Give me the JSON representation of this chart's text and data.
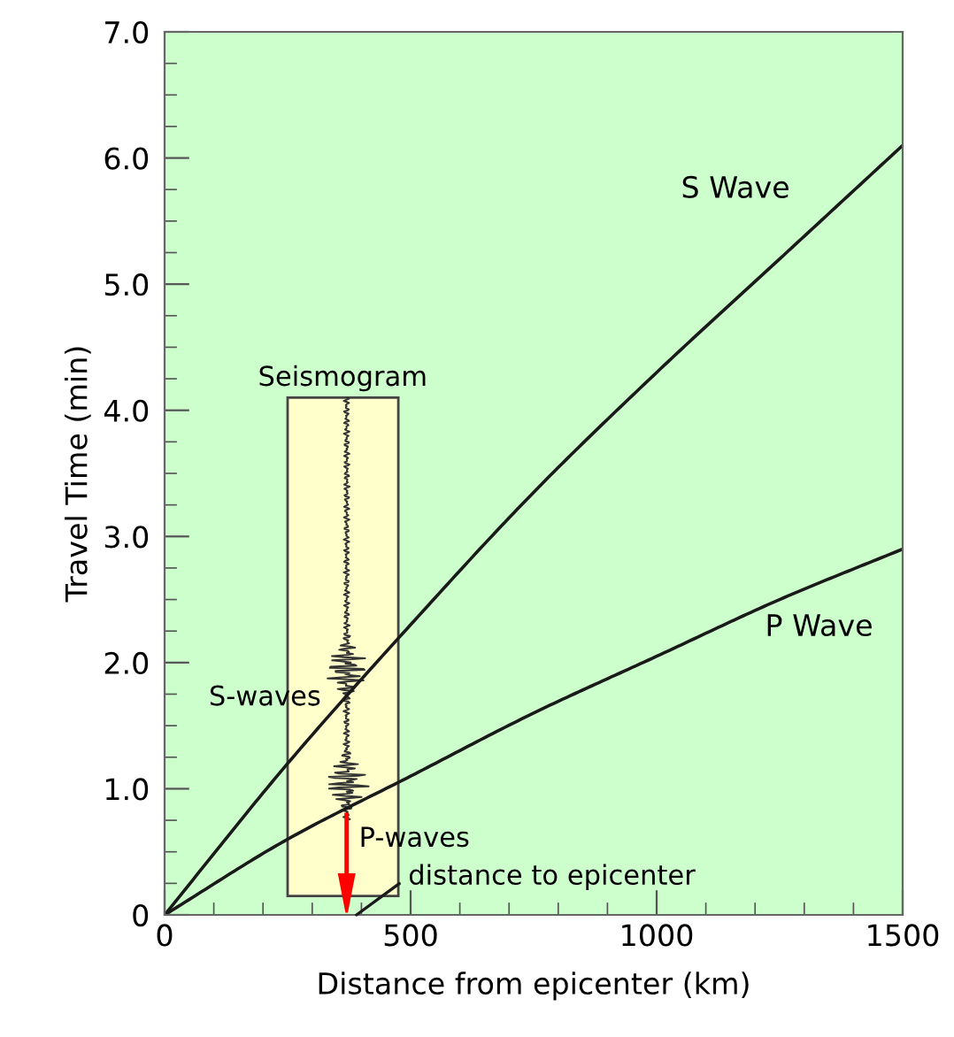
{
  "chart_data": {
    "type": "line",
    "xlabel": "Distance from epicenter (km)",
    "ylabel": "Travel Time (min)",
    "x": [
      0,
      250,
      500,
      750,
      1000,
      1250,
      1500
    ],
    "series": [
      {
        "name": "S Wave",
        "color": "#1a1a1a",
        "values": [
          0,
          1.2,
          2.3,
          3.35,
          4.3,
          5.2,
          6.1
        ]
      },
      {
        "name": "P Wave",
        "color": "#1a1a1a",
        "values": [
          0,
          0.6,
          1.1,
          1.6,
          2.05,
          2.5,
          2.9
        ]
      }
    ],
    "xlim": [
      0,
      1500
    ],
    "ylim": [
      0,
      7
    ],
    "xticks": [
      0,
      500,
      1000,
      1500
    ],
    "yticks": [
      0,
      {
        "value": 1,
        "label": "1.0"
      },
      {
        "value": 2,
        "label": "2.0"
      },
      {
        "value": 3,
        "label": "3.0"
      },
      {
        "value": 4,
        "label": "4.0"
      },
      {
        "value": 5,
        "label": "5.0"
      },
      {
        "value": 6,
        "label": "6.0"
      },
      {
        "value": 7,
        "label": "7.0"
      }
    ],
    "annotations": [
      "Seismogram",
      "S-waves",
      "P-waves",
      "distance to epicenter"
    ],
    "grid": false,
    "legend": false,
    "marker": "none",
    "line_style": "solid"
  }
}
